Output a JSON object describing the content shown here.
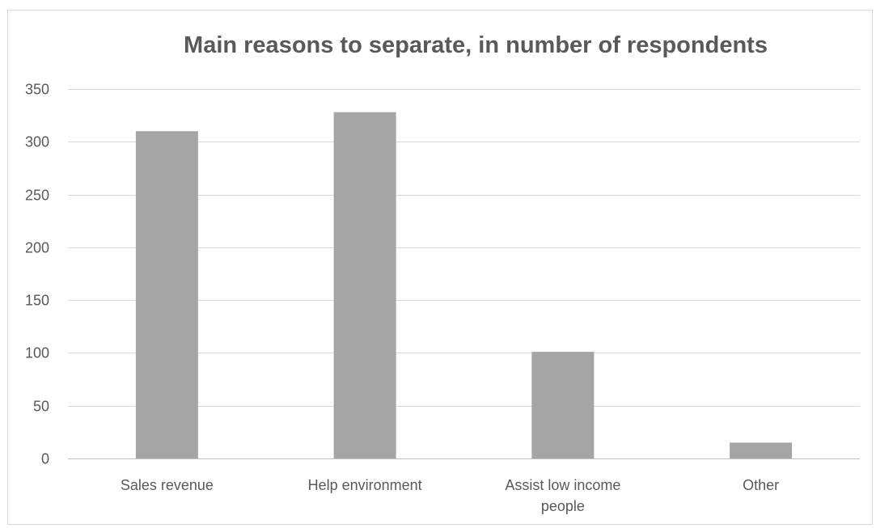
{
  "chart_data": {
    "type": "bar",
    "title": "Main reasons to separate, in number of respondents",
    "xlabel": "",
    "ylabel": "",
    "categories": [
      [
        "Sales revenue"
      ],
      [
        "Help environment"
      ],
      [
        "Assist low income",
        "people"
      ],
      [
        "Other"
      ]
    ],
    "values": [
      310,
      328,
      101,
      15
    ],
    "ylim": [
      0,
      350
    ],
    "yticks": [
      0,
      50,
      100,
      150,
      200,
      250,
      300,
      350
    ],
    "grid": true,
    "legend": "none",
    "colors": {
      "bar": "#a5a5a5",
      "grid": "#d9d9d9",
      "text": "#595959",
      "frame": "#d9d9d9"
    }
  }
}
